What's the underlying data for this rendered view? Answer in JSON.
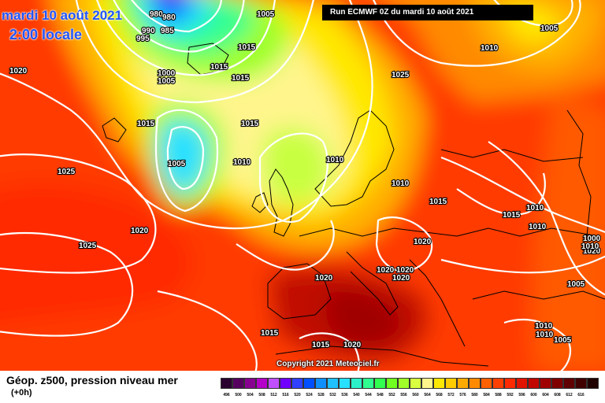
{
  "header": {
    "date": "mardi 10 août 2021",
    "time": "2:00 locale",
    "run": "Run ECMWF 0Z du mardi 10 août 2021"
  },
  "footer": {
    "copyright": "Copyright 2021 Meteociel.fr",
    "legend_title": "Géop. z500, pression niveau mer",
    "legend_sub": "(+0h)"
  },
  "colors": {
    "deep_red": "#a00000",
    "red": "#ff2a00",
    "orange": "#ff8a00",
    "yellow": "#ffe800",
    "pale_yellow": "#fff58c",
    "green": "#a0ff28",
    "cyan": "#28e0ff",
    "blue": "#0050ff",
    "isobar": "#ffffff",
    "coast": "#000000"
  },
  "isobar_labels": [
    "1005",
    "980",
    "990",
    "985",
    "995",
    "980",
    "1015",
    "1015",
    "1015",
    "1000",
    "1005",
    "1015",
    "1025",
    "1010",
    "1020",
    "1005",
    "1010",
    "1015",
    "1005",
    "1010",
    "1010",
    "1025",
    "1020",
    "1020",
    "1015",
    "1015",
    "1010",
    "1010",
    "1025",
    "1020",
    "1020",
    "1000",
    "1020",
    "1010",
    "1020",
    "1005",
    "1020",
    "1010",
    "1005",
    "1015",
    "1015",
    "1020",
    "1010"
  ],
  "legend": {
    "colors": [
      "#2a0030",
      "#560060",
      "#880090",
      "#b400c8",
      "#c050ff",
      "#7000ff",
      "#3040ff",
      "#0050ff",
      "#1090ff",
      "#20c0ff",
      "#28e0ff",
      "#2cf0c8",
      "#30ff90",
      "#30ff50",
      "#70ff20",
      "#a0ff28",
      "#d8ff40",
      "#fff58c",
      "#ffe800",
      "#ffcc00",
      "#ffaa00",
      "#ff8a00",
      "#ff6000",
      "#ff4000",
      "#ff2a00",
      "#e01400",
      "#c00800",
      "#a00000",
      "#800000",
      "#600000",
      "#400000",
      "#200000"
    ],
    "ticks": [
      "496",
      "500",
      "504",
      "508",
      "512",
      "516",
      "520",
      "524",
      "528",
      "532",
      "536",
      "540",
      "544",
      "548",
      "552",
      "556",
      "560",
      "564",
      "568",
      "572",
      "576",
      "580",
      "584",
      "588",
      "592",
      "596",
      "600",
      "604",
      "608",
      "612",
      "616"
    ]
  }
}
